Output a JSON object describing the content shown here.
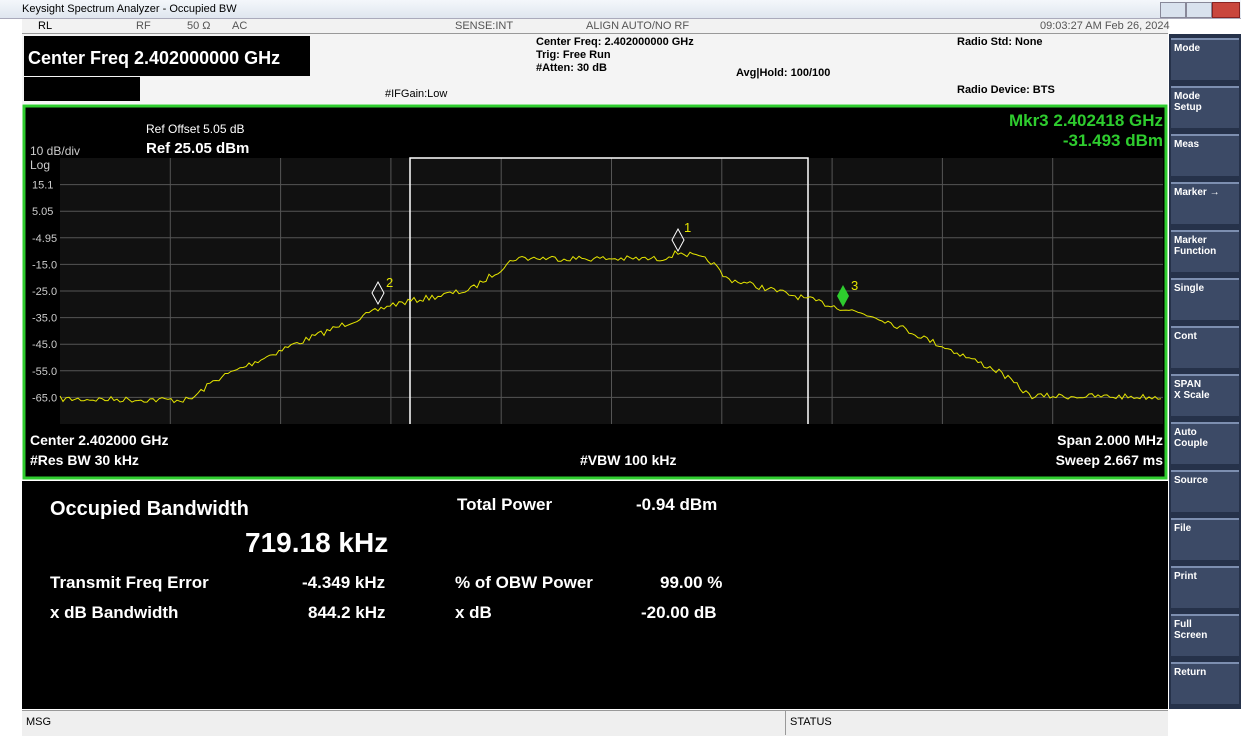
{
  "window": {
    "title": "Keysight Spectrum Analyzer - Occupied BW"
  },
  "status_bar": {
    "rl": "RL",
    "rf": "RF",
    "impedance": "50 Ω",
    "coupling": "AC",
    "sense": "SENSE:INT",
    "align": "ALIGN AUTO/NO RF",
    "datetime": "09:03:27 AM Feb 26, 2024"
  },
  "header": {
    "center_freq": "Center Freq 2.402000000 GHz",
    "center_freq_small": "Center Freq: 2.402000000 GHz",
    "trig": "Trig: Free Run",
    "atten": "#Atten: 30 dB",
    "ifgain": "#IFGain:Low",
    "avg_hold": "Avg|Hold: 100/100",
    "radio_std": "Radio Std: None",
    "radio_device": "Radio Device: BTS"
  },
  "graph": {
    "ref_offset": "Ref Offset 5.05 dB",
    "ref_level": "Ref 25.05 dBm",
    "scale": "10 dB/div",
    "scale_type": "Log",
    "y_labels": [
      "15.1",
      "5.05",
      "-4.95",
      "-15.0",
      "-25.0",
      "-35.0",
      "-45.0",
      "-55.0",
      "-65.0"
    ],
    "marker_freq": "Mkr3  2.402418 GHz",
    "marker_level": "-31.493 dBm",
    "markers": [
      "1",
      "2",
      "3"
    ],
    "center": "Center 2.402000 GHz",
    "res_bw": "#Res BW  30 kHz",
    "vbw": "#VBW  100 kHz",
    "span": "Span 2.000 MHz",
    "sweep": "Sweep  2.667 ms"
  },
  "results": {
    "obw_label": "Occupied Bandwidth",
    "obw_value": "719.18 kHz",
    "tfe_label": "Transmit Freq Error",
    "tfe_value": "-4.349 kHz",
    "xdbbw_label": "x dB Bandwidth",
    "xdbbw_value": "844.2 kHz",
    "tp_label": "Total Power",
    "tp_value": "-0.94 dBm",
    "pct_label": "% of OBW Power",
    "pct_value": "99.00 %",
    "xdb_label": "x dB",
    "xdb_value": "-20.00 dB"
  },
  "softkeys": [
    [
      "Mode"
    ],
    [
      "Mode",
      "Setup"
    ],
    [
      "Meas"
    ],
    [
      "Marker →"
    ],
    [
      "Marker",
      "Function"
    ],
    [
      "Single"
    ],
    [
      "Cont"
    ],
    [
      "SPAN",
      "X Scale"
    ],
    [
      "Auto",
      "Couple"
    ],
    [
      "Source"
    ],
    [
      "File"
    ],
    [
      "Print"
    ],
    [
      "Full",
      "Screen"
    ],
    [
      "Return"
    ]
  ],
  "footer": {
    "msg": "MSG",
    "status": "STATUS"
  }
}
